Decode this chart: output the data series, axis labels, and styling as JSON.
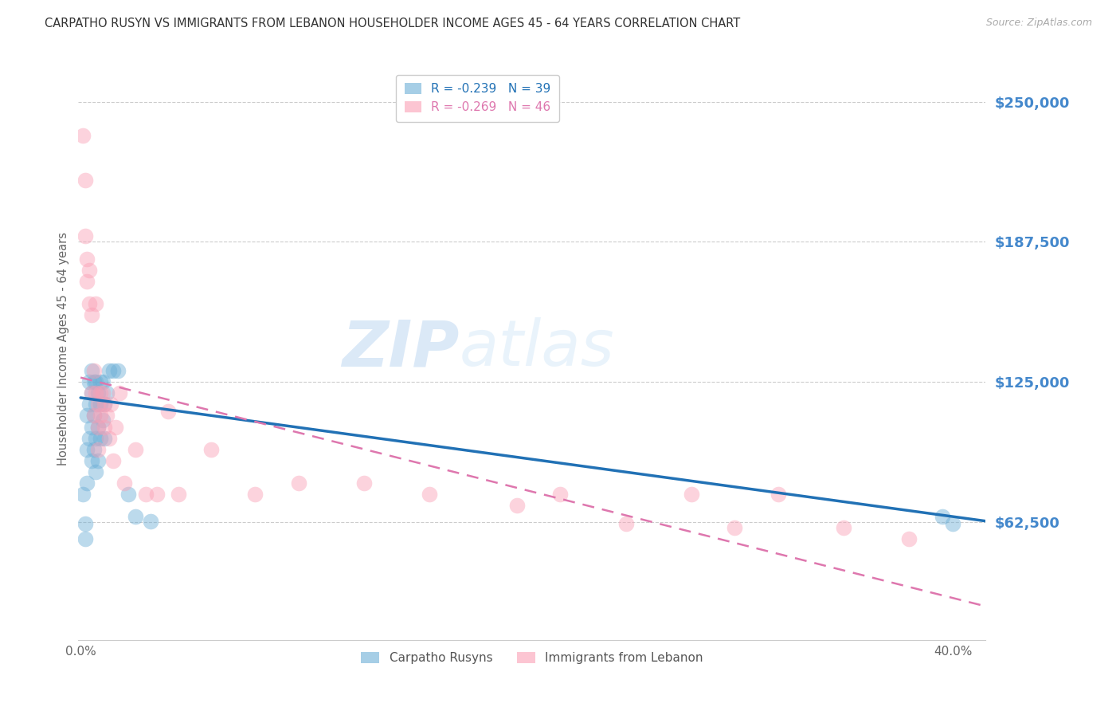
{
  "title": "CARPATHO RUSYN VS IMMIGRANTS FROM LEBANON HOUSEHOLDER INCOME AGES 45 - 64 YEARS CORRELATION CHART",
  "source": "Source: ZipAtlas.com",
  "ylabel": "Householder Income Ages 45 - 64 years",
  "ytick_labels": [
    "$62,500",
    "$125,000",
    "$187,500",
    "$250,000"
  ],
  "ytick_values": [
    62500,
    125000,
    187500,
    250000
  ],
  "ymin": 10000,
  "ymax": 270000,
  "xmin": -0.001,
  "xmax": 0.415,
  "watermark_zip": "ZIP",
  "watermark_atlas": "atlas",
  "legend_top": [
    {
      "label": "R = -0.239   N = 39",
      "color": "#87CEEB"
    },
    {
      "label": "R = -0.269   N = 46",
      "color": "#FFB6C1"
    }
  ],
  "legend_bottom": [
    {
      "label": "Carpatho Rusyns",
      "color": "#87CEEB"
    },
    {
      "label": "Immigrants from Lebanon",
      "color": "#FFB6C1"
    }
  ],
  "blue_scatter_x": [
    0.001,
    0.002,
    0.002,
    0.003,
    0.003,
    0.003,
    0.004,
    0.004,
    0.004,
    0.005,
    0.005,
    0.005,
    0.005,
    0.006,
    0.006,
    0.006,
    0.007,
    0.007,
    0.007,
    0.007,
    0.008,
    0.008,
    0.008,
    0.009,
    0.009,
    0.009,
    0.01,
    0.01,
    0.011,
    0.011,
    0.012,
    0.013,
    0.015,
    0.017,
    0.022,
    0.025,
    0.032,
    0.395,
    0.4
  ],
  "blue_scatter_y": [
    75000,
    62000,
    55000,
    80000,
    95000,
    110000,
    100000,
    115000,
    125000,
    90000,
    105000,
    120000,
    130000,
    95000,
    110000,
    125000,
    85000,
    100000,
    115000,
    125000,
    90000,
    105000,
    120000,
    100000,
    115000,
    125000,
    108000,
    125000,
    100000,
    115000,
    120000,
    130000,
    130000,
    130000,
    75000,
    65000,
    63000,
    65000,
    62000
  ],
  "pink_scatter_x": [
    0.001,
    0.002,
    0.002,
    0.003,
    0.003,
    0.004,
    0.004,
    0.005,
    0.005,
    0.006,
    0.006,
    0.007,
    0.007,
    0.008,
    0.008,
    0.008,
    0.009,
    0.009,
    0.01,
    0.011,
    0.011,
    0.012,
    0.013,
    0.014,
    0.015,
    0.016,
    0.018,
    0.02,
    0.025,
    0.03,
    0.035,
    0.04,
    0.045,
    0.06,
    0.08,
    0.1,
    0.13,
    0.16,
    0.2,
    0.22,
    0.25,
    0.28,
    0.3,
    0.32,
    0.35,
    0.38
  ],
  "pink_scatter_y": [
    235000,
    215000,
    190000,
    180000,
    170000,
    175000,
    160000,
    155000,
    120000,
    130000,
    110000,
    160000,
    120000,
    115000,
    105000,
    95000,
    120000,
    110000,
    120000,
    115000,
    105000,
    110000,
    100000,
    115000,
    90000,
    105000,
    120000,
    80000,
    95000,
    75000,
    75000,
    112000,
    75000,
    95000,
    75000,
    80000,
    80000,
    75000,
    70000,
    75000,
    62000,
    75000,
    60000,
    75000,
    60000,
    55000
  ],
  "blue_line_x": [
    0.0,
    0.415
  ],
  "blue_line_y": [
    118000,
    63000
  ],
  "pink_line_x": [
    0.0,
    0.415
  ],
  "pink_line_y": [
    127000,
    25000
  ],
  "blue_color": "#6baed6",
  "pink_color": "#fa9fb5",
  "blue_line_color": "#2171b5",
  "pink_line_color": "#de77ae",
  "grid_color": "#cccccc",
  "title_color": "#333333",
  "source_color": "#aaaaaa",
  "ytick_color": "#4488cc",
  "background_color": "#ffffff"
}
